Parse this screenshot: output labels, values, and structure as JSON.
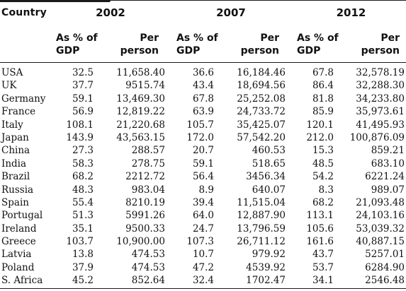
{
  "header": {
    "country": "Country",
    "years": [
      "2002",
      "2007",
      "2012"
    ],
    "gdp_line1": "As % of",
    "gdp_line2": "GDP",
    "pp_line1": "Per",
    "pp_line2": "person"
  },
  "rows": [
    {
      "country": "USA",
      "g2002": "32.5",
      "p2002": "11,658.40",
      "g2007": "36.6",
      "p2007": "16,184.46",
      "g2012": "67.8",
      "p2012": "32,578.19"
    },
    {
      "country": "UK",
      "g2002": "37.7",
      "p2002": "9515.74",
      "g2007": "43.4",
      "p2007": "18,694.56",
      "g2012": "86.4",
      "p2012": "32,288.30"
    },
    {
      "country": "Germany",
      "g2002": "59.1",
      "p2002": "13,469.30",
      "g2007": "67.8",
      "p2007": "25,252.08",
      "g2012": "81.8",
      "p2012": "34,233.80"
    },
    {
      "country": "France",
      "g2002": "56.9",
      "p2002": "12,819.22",
      "g2007": "63.9",
      "p2007": "24,733.72",
      "g2012": "85.9",
      "p2012": "35,973.61"
    },
    {
      "country": "Italy",
      "g2002": "108.1",
      "p2002": "21,220.68",
      "g2007": "105.7",
      "p2007": "35,425.07",
      "g2012": "120.1",
      "p2012": "41,495.93"
    },
    {
      "country": "Japan",
      "g2002": "143.9",
      "p2002": "43,563.15",
      "g2007": "172.0",
      "p2007": "57,542.20",
      "g2012": "212.0",
      "p2012": "100,876.09"
    },
    {
      "country": "China",
      "g2002": "27.3",
      "p2002": "288.57",
      "g2007": "20.7",
      "p2007": "460.53",
      "g2012": "15.3",
      "p2012": "859.21"
    },
    {
      "country": "India",
      "g2002": "58.3",
      "p2002": "278.75",
      "g2007": "59.1",
      "p2007": "518.65",
      "g2012": "48.5",
      "p2012": "683.10"
    },
    {
      "country": "Brazil",
      "g2002": "68.2",
      "p2002": "2212.72",
      "g2007": "56.4",
      "p2007": "3456.34",
      "g2012": "54.2",
      "p2012": "6221.24"
    },
    {
      "country": "Russia",
      "g2002": "48.3",
      "p2002": "983.04",
      "g2007": "8.9",
      "p2007": "640.07",
      "g2012": "8.3",
      "p2012": "989.07"
    },
    {
      "country": "Spain",
      "g2002": "55.4",
      "p2002": "8210.19",
      "g2007": "39.4",
      "p2007": "11,515.04",
      "g2012": "68.2",
      "p2012": "21,093.48"
    },
    {
      "country": "Portugal",
      "g2002": "51.3",
      "p2002": "5991.26",
      "g2007": "64.0",
      "p2007": "12,887.90",
      "g2012": "113.1",
      "p2012": "24,103.16"
    },
    {
      "country": "Ireland",
      "g2002": "35.1",
      "p2002": "9500.33",
      "g2007": "24.7",
      "p2007": "13,796.59",
      "g2012": "105.6",
      "p2012": "53,039.32"
    },
    {
      "country": "Greece",
      "g2002": "103.7",
      "p2002": "10,900.00",
      "g2007": "107.3",
      "p2007": "26,711.12",
      "g2012": "161.6",
      "p2012": "40,887.15"
    },
    {
      "country": "Latvia",
      "g2002": "13.8",
      "p2002": "474.53",
      "g2007": "10.7",
      "p2007": "979.92",
      "g2012": "43.7",
      "p2012": "5257.01"
    },
    {
      "country": "Poland",
      "g2002": "37.9",
      "p2002": "474.53",
      "g2007": "47.2",
      "p2007": "4539.92",
      "g2012": "53.7",
      "p2012": "6284.90"
    },
    {
      "country": "S. Africa",
      "g2002": "45.2",
      "p2002": "852.64",
      "g2007": "32.4",
      "p2007": "1702.47",
      "g2012": "34.1",
      "p2012": "2546.48"
    }
  ]
}
